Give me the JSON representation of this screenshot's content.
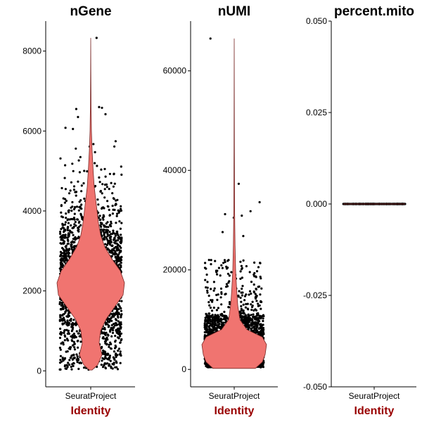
{
  "colors": {
    "violin_fill": "#f07470",
    "violin_stroke": "#7a2a28",
    "point": "#000000",
    "axis_title": "#990000",
    "axis": "#000000"
  },
  "chart_data": [
    {
      "type": "violin",
      "title": "nGene",
      "xlabel": "Identity",
      "ylabel": "",
      "categories": [
        "SeuratProject"
      ],
      "yticks": [
        0,
        2000,
        4000,
        6000,
        8000
      ],
      "ylim": [
        -400,
        8750
      ],
      "median": 2200,
      "max": 8330,
      "min": 20,
      "outliers": [
        {
          "y": 8330
        },
        {
          "y": 6600
        },
        {
          "y": 6580
        },
        {
          "y": 6550
        },
        {
          "y": 6420
        },
        {
          "y": 6350
        },
        {
          "y": 6080
        },
        {
          "y": 6050
        }
      ]
    },
    {
      "type": "violin",
      "title": "nUMI",
      "xlabel": "Identity",
      "ylabel": "",
      "categories": [
        "SeuratProject"
      ],
      "yticks": [
        0,
        20000,
        40000,
        60000
      ],
      "ylim": [
        -3500,
        70000
      ],
      "median": 5000,
      "max": 66500,
      "min": 200,
      "outliers": [
        {
          "y": 66500
        },
        {
          "y": 37300
        },
        {
          "y": 33600
        },
        {
          "y": 31800
        },
        {
          "y": 31200
        },
        {
          "y": 30900
        },
        {
          "y": 30500
        },
        {
          "y": 27600
        },
        {
          "y": 26800
        }
      ]
    },
    {
      "type": "violin",
      "title": "percent.mito",
      "xlabel": "Identity",
      "ylabel": "",
      "categories": [
        "SeuratProject"
      ],
      "yticks": [
        -0.05,
        -0.025,
        0.0,
        0.025,
        0.05
      ],
      "ytick_labels": [
        "-0.050",
        "-0.025",
        "0.000",
        "0.025",
        "0.050"
      ],
      "ylim": [
        -0.05,
        0.05
      ],
      "median": 0.0,
      "max": 0.0,
      "min": 0.0,
      "outliers": []
    }
  ]
}
